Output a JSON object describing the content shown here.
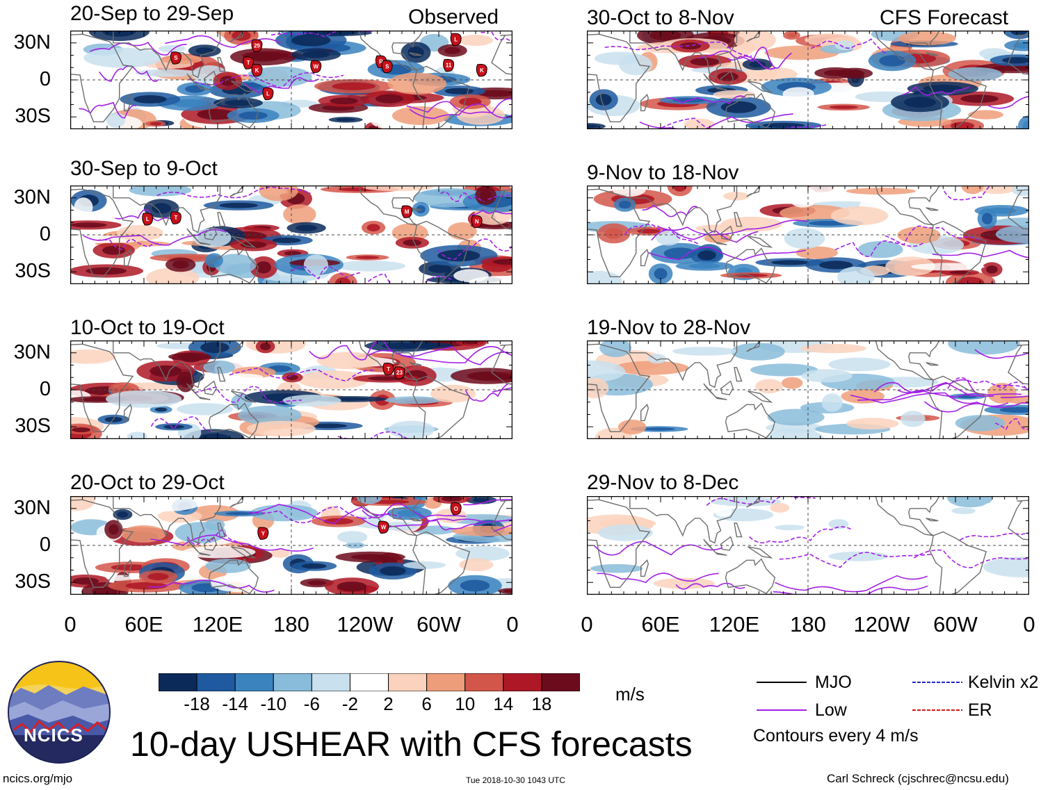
{
  "header": {
    "observed_label": "Observed",
    "forecast_label": "CFS Forecast"
  },
  "chart_data": {
    "type": "heatmap",
    "title": "10-day USHEAR with CFS forecasts",
    "variable": "USHEAR",
    "units": "m/s",
    "xlim": [
      0,
      360
    ],
    "ylim": [
      -40,
      40
    ],
    "x_ticks": [
      "0",
      "60E",
      "120E",
      "180",
      "120W",
      "60W",
      "0"
    ],
    "y_ticks": [
      "30N",
      "0",
      "30S"
    ],
    "observed_panels": [
      {
        "period": "20-Sep to 29-Sep",
        "storms": [
          {
            "id": "S",
            "lon": 86,
            "lat": 18
          },
          {
            "id": "29",
            "lon": 152,
            "lat": 28
          },
          {
            "id": "T",
            "lon": 145,
            "lat": 14
          },
          {
            "id": "K",
            "lon": 152,
            "lat": 8
          },
          {
            "id": "L",
            "lon": 161,
            "lat": -11
          },
          {
            "id": "W",
            "lon": 200,
            "lat": 11
          },
          {
            "id": "R",
            "lon": 253,
            "lat": 15
          },
          {
            "id": "S",
            "lon": 258,
            "lat": 11
          },
          {
            "id": "L",
            "lon": 314,
            "lat": 33
          },
          {
            "id": "11",
            "lon": 308,
            "lat": 12
          },
          {
            "id": "K",
            "lon": 335,
            "lat": 8
          }
        ]
      },
      {
        "period": "30-Sep to 9-Oct",
        "storms": [
          {
            "id": "L",
            "lon": 63,
            "lat": 13
          },
          {
            "id": "T",
            "lon": 86,
            "lat": 14
          },
          {
            "id": "M",
            "lon": 274,
            "lat": 19
          },
          {
            "id": "N",
            "lon": 331,
            "lat": 11
          }
        ]
      },
      {
        "period": "10-Oct to 19-Oct",
        "storms": [
          {
            "id": "T",
            "lon": 259,
            "lat": 17
          },
          {
            "id": "23",
            "lon": 268,
            "lat": 14
          }
        ]
      },
      {
        "period": "20-Oct to 29-Oct",
        "storms": [
          {
            "id": "Y",
            "lon": 157,
            "lat": 10
          },
          {
            "id": "W",
            "lon": 255,
            "lat": 15
          },
          {
            "id": "O",
            "lon": 314,
            "lat": 30
          }
        ]
      }
    ],
    "forecast_panels": [
      {
        "period": "30-Oct to 8-Nov"
      },
      {
        "period": "9-Nov to 18-Nov"
      },
      {
        "period": "19-Nov to 28-Nov"
      },
      {
        "period": "29-Nov to 8-Dec"
      }
    ],
    "colorbar": {
      "levels": [
        "-18",
        "-14",
        "-10",
        "-6",
        "-2",
        "2",
        "6",
        "10",
        "14",
        "18"
      ],
      "colors": [
        "#0b2a5a",
        "#1f5aa0",
        "#3a83bf",
        "#89bcda",
        "#c9e0ee",
        "#ffffff",
        "#fbd2bd",
        "#ee9d7a",
        "#d3564a",
        "#ae1826",
        "#6c0b1c"
      ],
      "units": "m/s"
    },
    "legend": [
      {
        "label": "MJO",
        "color": "#000000"
      },
      {
        "label": "Low",
        "color": "#a31fe6"
      },
      {
        "label": "Kelvin x2",
        "color": "#2424c8"
      },
      {
        "label": "ER",
        "color": "#d21616"
      }
    ],
    "contour_note": "Contours every 4 m/s"
  },
  "footer": {
    "logo_text": "NCICS",
    "url": "ncics.org/mjo",
    "timestamp": "Tue 2018-10-30 1043 UTC",
    "author": "Carl Schreck (cjschrec@ncsu.edu)"
  }
}
